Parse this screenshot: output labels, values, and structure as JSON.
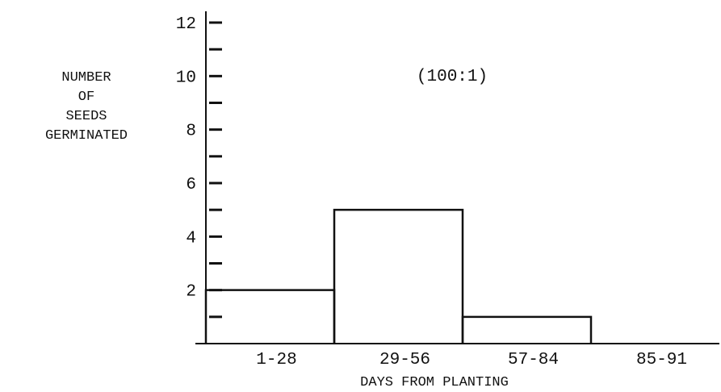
{
  "chart_data": {
    "type": "bar",
    "title": "",
    "annotation": "(100:1)",
    "ylabel_lines": [
      "NUMBER",
      "OF",
      "SEEDS",
      "GERMINATED"
    ],
    "xlabel": "DAYS FROM PLANTING",
    "categories": [
      "1-28",
      "29-56",
      "57-84",
      "85-91"
    ],
    "values": [
      2,
      5,
      1,
      0
    ],
    "y_tick_labels": [
      "2",
      "4",
      "6",
      "8",
      "10",
      "12"
    ],
    "ylim": [
      0,
      12
    ],
    "grid": false
  }
}
